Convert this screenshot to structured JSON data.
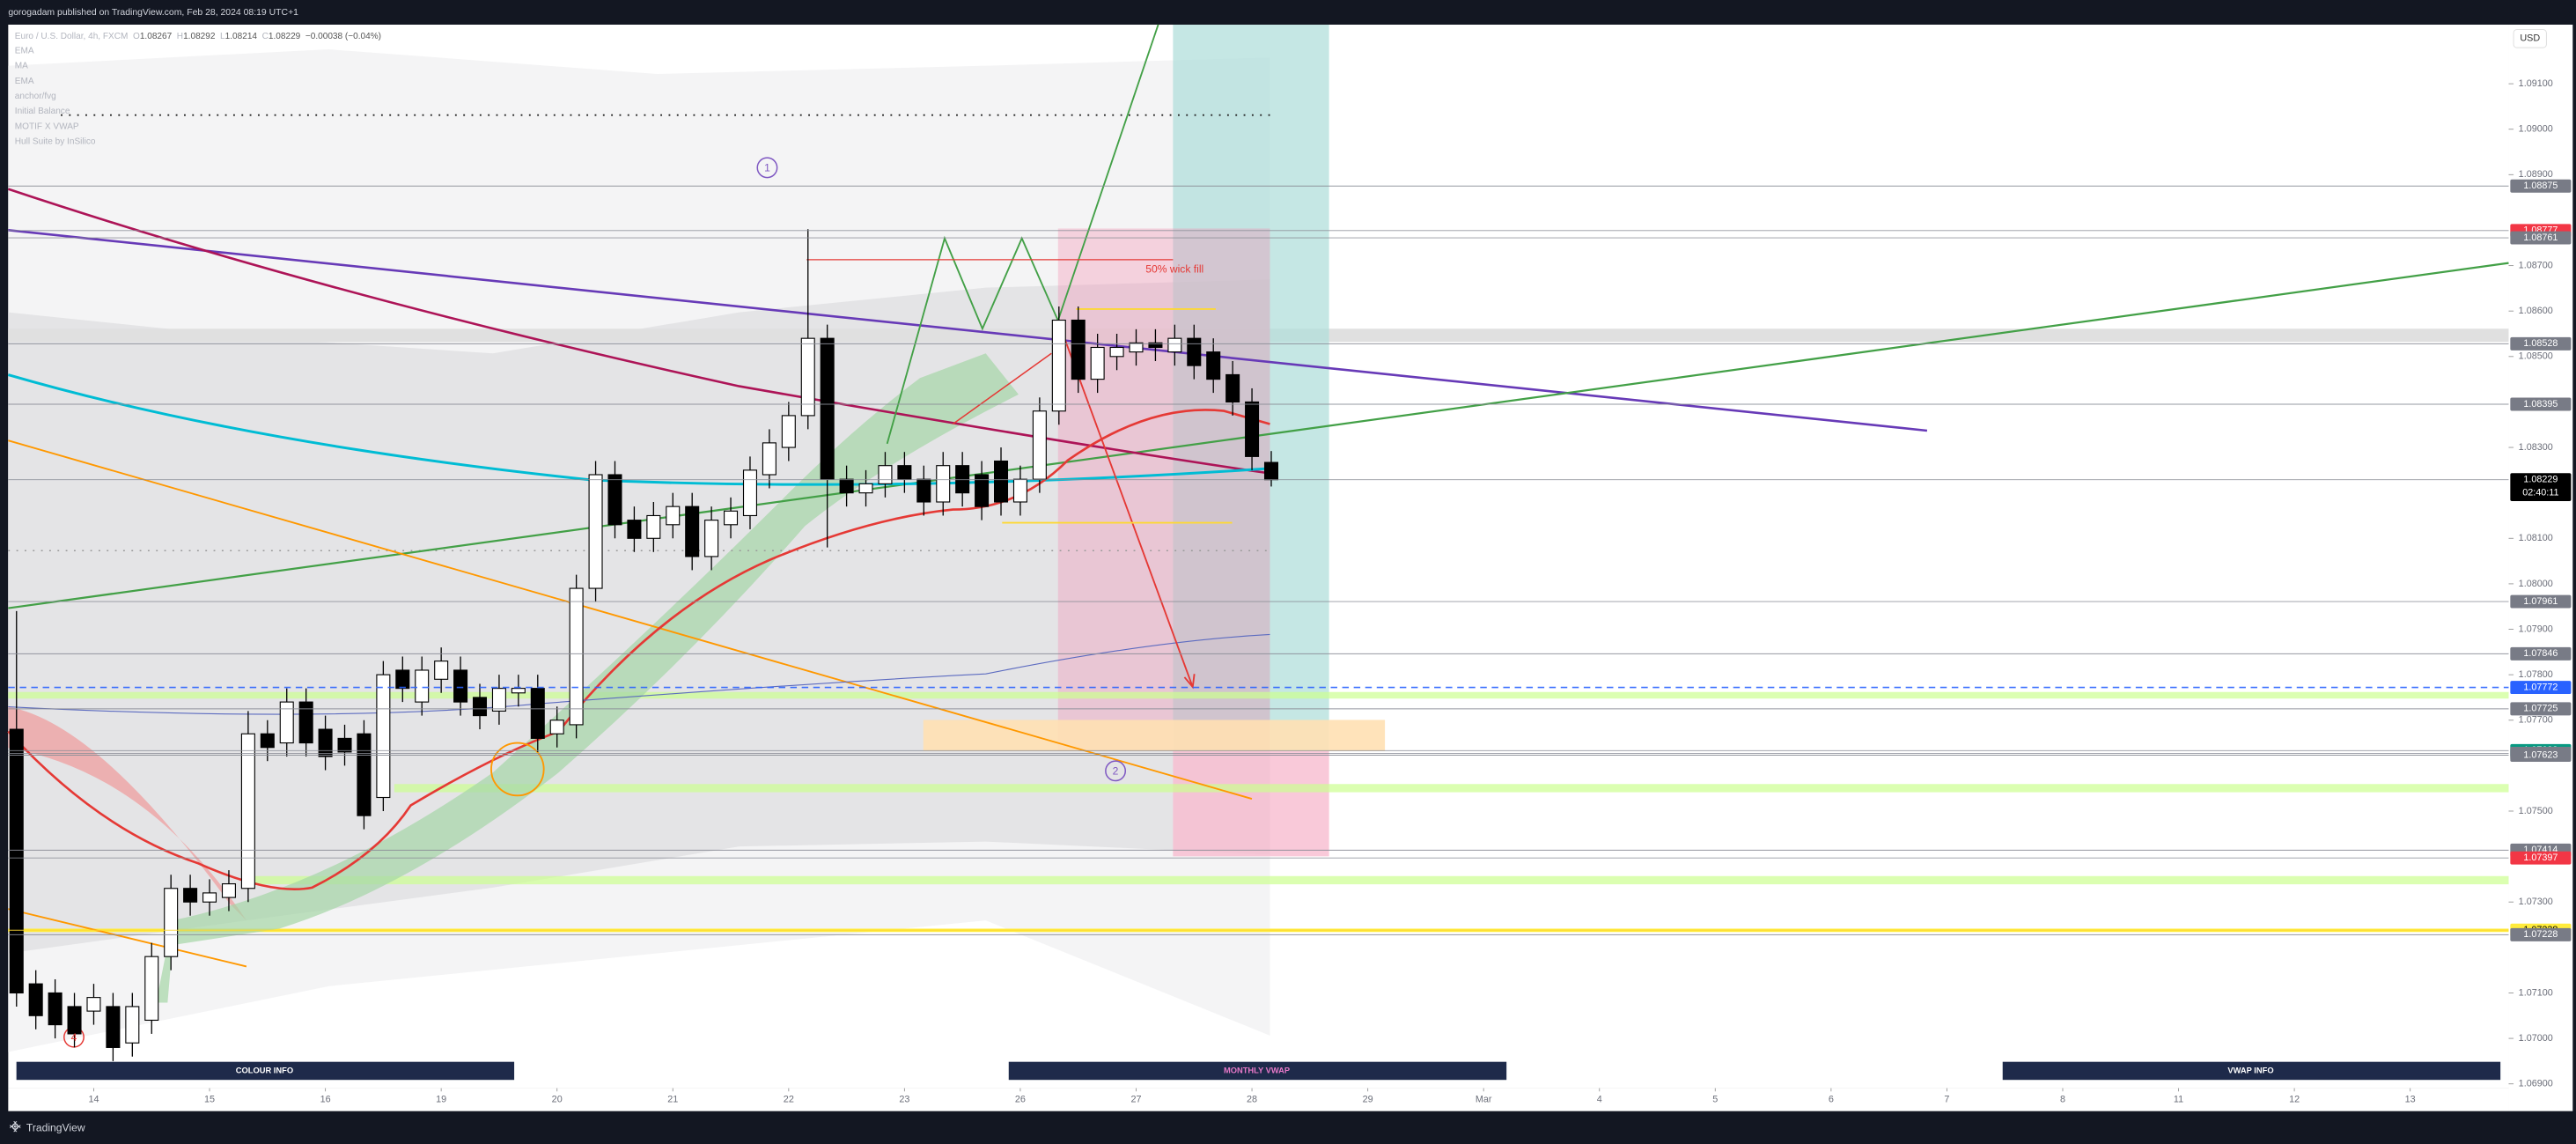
{
  "header": {
    "publisher": "gorogadam published on TradingView.com, Feb 28, 2024 08:19 UTC+1",
    "symbol": "Euro / U.S. Dollar, 4h, FXCM",
    "ohlc": [
      {
        "key": "O",
        "value": "1.08267"
      },
      {
        "key": "H",
        "value": "1.08292"
      },
      {
        "key": "L",
        "value": "1.08214"
      },
      {
        "key": "C",
        "value": "1.08229"
      }
    ],
    "change": "−0.00038 (−0.04%)",
    "indicators": [
      "EMA",
      "MA",
      "EMA",
      "anchor/fvg",
      "Initial Balance",
      "MOTIF X VWAP",
      "Hull Suite by InSilico"
    ]
  },
  "currency": "USD",
  "footer": "TradingView",
  "buttons": [
    "COLOUR INFO",
    "MONTHLY VWAP",
    "VWAP INFO"
  ],
  "chart_data": {
    "type": "candlestick",
    "open": [
      1.0768,
      1.0712,
      1.071,
      1.0707,
      1.0706,
      1.0707,
      1.0699,
      1.0704,
      1.0718,
      1.0733,
      1.073,
      1.0731,
      1.0733,
      1.0767,
      1.0765,
      1.0774,
      1.0768,
      1.0766,
      1.0767,
      1.0753,
      1.0781,
      1.0774,
      1.0779,
      1.0781,
      1.0775,
      1.0772,
      1.0776,
      1.0777,
      1.0767,
      1.0769,
      1.0799,
      1.0824,
      1.0814,
      1.081,
      1.0813,
      1.0817,
      1.0806,
      1.0813,
      1.0815,
      1.0824,
      1.083,
      1.0837,
      1.0854,
      1.0823,
      1.082,
      1.0822,
      1.0826,
      1.0823,
      1.0818,
      1.0826,
      1.0824,
      1.0827,
      1.0818,
      1.0823,
      1.0838,
      1.0858,
      1.0845,
      1.085,
      1.0851,
      1.0853,
      1.0851,
      1.0854,
      1.0851,
      1.0846,
      1.084,
      1.08267
    ],
    "high": [
      1.0794,
      1.0715,
      1.0713,
      1.071,
      1.0712,
      1.071,
      1.071,
      1.0721,
      1.0736,
      1.0736,
      1.0735,
      1.0737,
      1.0772,
      1.077,
      1.0777,
      1.0777,
      1.0771,
      1.0769,
      1.077,
      1.0783,
      1.0784,
      1.0784,
      1.0786,
      1.0784,
      1.0778,
      1.078,
      1.078,
      1.078,
      1.0773,
      1.0802,
      1.0827,
      1.0827,
      1.0817,
      1.0818,
      1.082,
      1.082,
      1.0817,
      1.0819,
      1.0828,
      1.0834,
      1.084,
      1.0878,
      1.0857,
      1.0826,
      1.0825,
      1.0829,
      1.0829,
      1.0826,
      1.0829,
      1.0829,
      1.0827,
      1.083,
      1.0826,
      1.0841,
      1.0861,
      1.0861,
      1.0855,
      1.0855,
      1.0856,
      1.0856,
      1.0857,
      1.0857,
      1.0854,
      1.0849,
      1.0843,
      1.08292
    ],
    "low": [
      1.0707,
      1.0702,
      1.07,
      1.0698,
      1.0703,
      1.0695,
      1.0696,
      1.0701,
      1.0715,
      1.0727,
      1.0727,
      1.0728,
      1.073,
      1.0761,
      1.0762,
      1.0762,
      1.0759,
      1.076,
      1.0746,
      1.075,
      1.0774,
      1.0771,
      1.0776,
      1.0771,
      1.0768,
      1.0769,
      1.0773,
      1.0763,
      1.0764,
      1.0766,
      1.0796,
      1.081,
      1.0807,
      1.0807,
      1.081,
      1.0803,
      1.0803,
      1.081,
      1.0812,
      1.0821,
      1.0827,
      1.0834,
      1.0808,
      1.0817,
      1.0817,
      1.0819,
      1.082,
      1.0815,
      1.0815,
      1.0817,
      1.0814,
      1.0815,
      1.0815,
      1.082,
      1.0835,
      1.0842,
      1.0842,
      1.0847,
      1.0848,
      1.0849,
      1.0848,
      1.0845,
      1.0842,
      1.0837,
      1.0825,
      1.08214
    ],
    "close": [
      1.071,
      1.0705,
      1.0703,
      1.0701,
      1.0709,
      1.0698,
      1.0707,
      1.0718,
      1.0733,
      1.073,
      1.0732,
      1.0734,
      1.0767,
      1.0764,
      1.0774,
      1.0765,
      1.0762,
      1.0763,
      1.0749,
      1.078,
      1.0777,
      1.0781,
      1.0783,
      1.0774,
      1.0771,
      1.0777,
      1.0777,
      1.0766,
      1.077,
      1.0799,
      1.0824,
      1.0813,
      1.081,
      1.0815,
      1.0817,
      1.0806,
      1.0814,
      1.0816,
      1.0825,
      1.0831,
      1.0837,
      1.0854,
      1.0823,
      1.082,
      1.0822,
      1.0826,
      1.0823,
      1.0818,
      1.0826,
      1.082,
      1.0817,
      1.0818,
      1.0823,
      1.0838,
      1.0858,
      1.0845,
      1.0852,
      1.0852,
      1.0853,
      1.0852,
      1.0854,
      1.0848,
      1.0845,
      1.084,
      1.0828,
      1.08229
    ],
    "up_color": "#ffffff",
    "down_color": "#000000",
    "xlim": [
      -0.43,
      129.1
    ],
    "xticks": [
      {
        "value": 4,
        "label": "14"
      },
      {
        "value": 10,
        "label": "15"
      },
      {
        "value": 16,
        "label": "16"
      },
      {
        "value": 22,
        "label": "19"
      },
      {
        "value": 28,
        "label": "20"
      },
      {
        "value": 34,
        "label": "21"
      },
      {
        "value": 40,
        "label": "22"
      },
      {
        "value": 46,
        "label": "23"
      },
      {
        "value": 52,
        "label": "26"
      },
      {
        "value": 58,
        "label": "27"
      },
      {
        "value": 64,
        "label": "28"
      },
      {
        "value": 70,
        "label": "29"
      },
      {
        "value": 76,
        "label": "Mar"
      },
      {
        "value": 82,
        "label": "4"
      },
      {
        "value": 88,
        "label": "5"
      },
      {
        "value": 94,
        "label": "6"
      },
      {
        "value": 100,
        "label": "7"
      },
      {
        "value": 106,
        "label": "8"
      },
      {
        "value": 112,
        "label": "11"
      },
      {
        "value": 118,
        "label": "12"
      },
      {
        "value": 124,
        "label": "13"
      }
    ],
    "ylim": [
      1.0684,
      1.0923
    ],
    "yticks": [
      {
        "value": 1.091,
        "label": "1.09100"
      },
      {
        "value": 1.09,
        "label": "1.09000"
      },
      {
        "value": 1.089,
        "label": "1.08900"
      },
      {
        "value": 1.087,
        "label": "1.08700"
      },
      {
        "value": 1.086,
        "label": "1.08600"
      },
      {
        "value": 1.085,
        "label": "1.08500"
      },
      {
        "value": 1.083,
        "label": "1.08300"
      },
      {
        "value": 1.081,
        "label": "1.08100"
      },
      {
        "value": 1.08,
        "label": "1.08000"
      },
      {
        "value": 1.079,
        "label": "1.07900"
      },
      {
        "value": 1.078,
        "label": "1.07800"
      },
      {
        "value": 1.077,
        "label": "1.07700"
      },
      {
        "value": 1.075,
        "label": "1.07500"
      },
      {
        "value": 1.073,
        "label": "1.07300"
      },
      {
        "value": 1.071,
        "label": "1.07100"
      },
      {
        "value": 1.07,
        "label": "1.07000"
      },
      {
        "value": 1.069,
        "label": "1.06900"
      }
    ],
    "price_labels": [
      {
        "value": 1.08875,
        "color": "#787b86"
      },
      {
        "value": 1.08777,
        "color": "#f23645"
      },
      {
        "value": 1.08761,
        "color": "#787b86"
      },
      {
        "value": 1.08528,
        "color": "#787b86"
      },
      {
        "value": 1.08395,
        "color": "#787b86"
      },
      {
        "value": 1.08229,
        "color": "#000000"
      },
      {
        "value": 1.07961,
        "color": "#787b86"
      },
      {
        "value": 1.07846,
        "color": "#787b86"
      },
      {
        "value": 1.07772,
        "color": "#2962ff"
      },
      {
        "value": 1.07725,
        "color": "#787b86"
      },
      {
        "value": 1.07633,
        "color": "#089981"
      },
      {
        "value": 1.07627,
        "color": "#787b86"
      },
      {
        "value": 1.07623,
        "color": "#787b86"
      },
      {
        "value": 1.07414,
        "color": "#787b86"
      },
      {
        "value": 1.07397,
        "color": "#f23645"
      },
      {
        "value": 1.07238,
        "color": "#ffeb3b"
      },
      {
        "value": 1.07228,
        "color": "#787b86"
      }
    ],
    "countdown": "02:40:11",
    "annotations": [
      "1",
      "2",
      "4",
      "50% wick fill"
    ]
  }
}
